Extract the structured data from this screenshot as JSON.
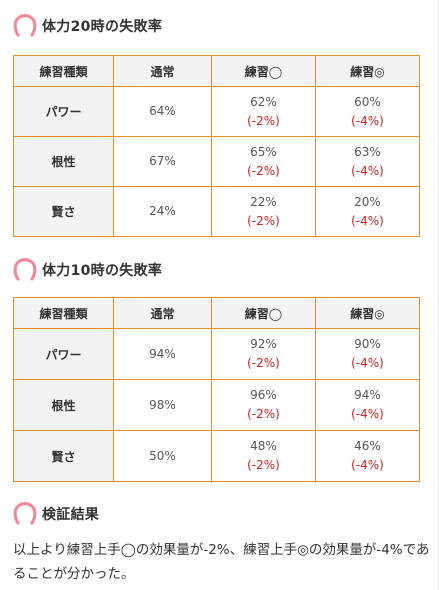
{
  "sections": [
    {
      "title": "体力20時の失敗率",
      "table": {
        "headers": [
          "練習種類",
          "通常",
          "練習◯",
          "練習◎"
        ],
        "rows": [
          {
            "type": "パワー",
            "normal": "64%",
            "good": "62%",
            "good_diff": "(-2%)",
            "great": "60%",
            "great_diff": "(-4%)"
          },
          {
            "type": "根性",
            "normal": "67%",
            "good": "65%",
            "good_diff": "(-2%)",
            "great": "63%",
            "great_diff": "(-4%)"
          },
          {
            "type": "賢さ",
            "normal": "24%",
            "good": "22%",
            "good_diff": "(-2%)",
            "great": "20%",
            "great_diff": "(-4%)"
          }
        ]
      }
    },
    {
      "title": "体力10時の失敗率",
      "table": {
        "headers": [
          "練習種類",
          "通常",
          "練習◯",
          "練習◎"
        ],
        "rows": [
          {
            "type": "パワー",
            "normal": "94%",
            "good": "92%",
            "good_diff": "(-2%)",
            "great": "90%",
            "great_diff": "(-4%)"
          },
          {
            "type": "根性",
            "normal": "98%",
            "good": "96%",
            "good_diff": "(-2%)",
            "great": "94%",
            "great_diff": "(-4%)"
          },
          {
            "type": "賢さ",
            "normal": "50%",
            "good": "48%",
            "good_diff": "(-2%)",
            "great": "46%",
            "great_diff": "(-4%)"
          }
        ]
      }
    }
  ],
  "conclusion": {
    "title": "検証結果",
    "text": "以上より練習上手◯の効果量が-2%、練習上手◎の効果量が-4%であることが分かった。"
  },
  "colors": {
    "border": "#d9922e",
    "header_bg": "#f3f3f3",
    "diff": "#cc2222",
    "icon": "#f08a9c"
  },
  "icons": {
    "heading_icon": "horseshoe-icon"
  }
}
